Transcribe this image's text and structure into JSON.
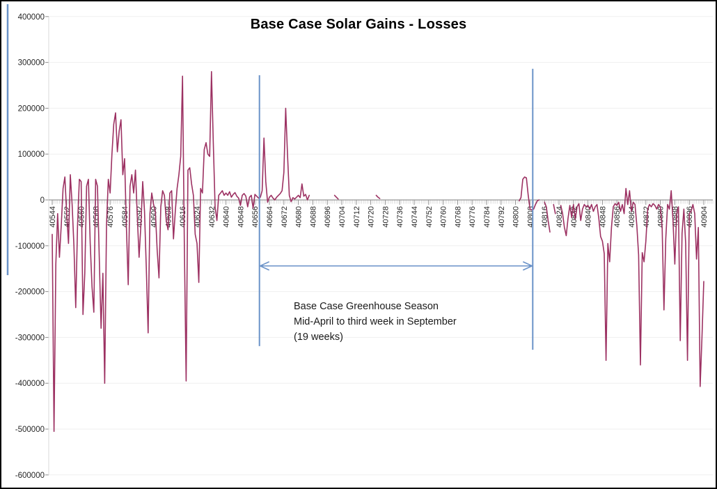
{
  "title": "Base Case Solar Gains - Losses",
  "annotation": {
    "lines": [
      "Base Case Greenhouse Season",
      "Mid-April to third week in September",
      "(19 weeks)"
    ]
  },
  "chart_data": {
    "type": "line",
    "title": "Base Case Solar Gains - Losses",
    "xlabel": "",
    "ylabel": "",
    "legend": "none",
    "grid": "horizontal-light",
    "colors": {
      "series": "#9C3162",
      "marker_blue": "#6A92C8",
      "gridline": "#EFEFEF",
      "axis": "#7F7F7F",
      "tick": "#8E8E8E",
      "minor_tick": "#C9C9C9",
      "label": "#262626",
      "title": "#000000"
    },
    "x_axis": {
      "range": [
        40544,
        40909
      ],
      "tick_interval": 8,
      "minor_tick_interval": 1,
      "labels": [
        40544,
        40552,
        40560,
        40568,
        40576,
        40584,
        40592,
        40600,
        40608,
        40616,
        40624,
        40632,
        40640,
        40648,
        40656,
        40664,
        40672,
        40680,
        40688,
        40696,
        40704,
        40712,
        40720,
        40728,
        40736,
        40744,
        40752,
        40760,
        40768,
        40776,
        40784,
        40792,
        40800,
        40808,
        40816,
        40824,
        40832,
        40840,
        40848,
        40856,
        40864,
        40872,
        40880,
        40888,
        40896,
        40904
      ]
    },
    "y_axis": {
      "min": -600000,
      "max": 400000,
      "tick_step": 100000,
      "tick_labels": [
        "400000",
        "300000",
        "200000",
        "100000",
        "0",
        "-100000",
        "-200000",
        "-300000",
        "-400000",
        "-500000",
        "-600000"
      ]
    },
    "series": [
      {
        "name": "Solar Gains - Losses",
        "color": "#9C3162",
        "segments": [
          {
            "start_x": 40544,
            "values": [
              -75000,
              -505000,
              -140000,
              -30000,
              -125000,
              -55000,
              25000,
              50000,
              -30000,
              -95000,
              55000,
              -10000,
              -100000,
              -235000,
              -55000,
              45000,
              40000,
              -250000,
              -160000,
              30000,
              45000,
              -95000,
              -190000,
              -245000,
              45000,
              30000,
              -125000,
              -280000,
              -160000,
              -400000,
              -55000,
              45000,
              15000,
              100000,
              165000,
              190000,
              105000,
              150000,
              175000,
              55000,
              90000,
              -60000,
              -185000,
              30000,
              55000,
              15000,
              65000,
              -35000,
              -125000,
              -55000,
              40000,
              -25000,
              -150000,
              -290000,
              -30000,
              15000,
              -10000,
              -25000,
              -110000,
              -170000,
              -15000,
              20000,
              10000,
              -45000,
              -65000,
              15000,
              20000,
              -85000,
              -25000,
              25000,
              55000,
              95000,
              270000,
              -95000,
              -395000,
              65000,
              70000,
              35000,
              10000,
              -75000,
              -95000,
              -180000,
              25000,
              15000,
              110000,
              125000,
              100000,
              95000,
              280000,
              125000,
              -15000,
              -45000,
              10000,
              15000,
              20000,
              10000,
              15000,
              10000,
              18000,
              6000,
              12000,
              16000,
              8000,
              4000,
              -12000,
              10000,
              14000,
              8000,
              -15000,
              6000,
              10000,
              -18000,
              12000,
              8000,
              4000,
              6000,
              20000,
              135000,
              40000,
              -5000,
              6000,
              10000,
              4000,
              0,
              6000,
              10000,
              14000,
              20000,
              60000,
              200000,
              100000,
              10000,
              -4000,
              5000,
              2000,
              6000,
              10000,
              5000,
              35000,
              8000,
              12000,
              0,
              10000
            ]
          },
          {
            "start_x": 40700,
            "values": [
              10000,
              6000,
              2000
            ]
          },
          {
            "start_x": 40723,
            "values": [
              10000,
              6000,
              3000
            ]
          },
          {
            "start_x": 40802,
            "values": [
              -2000,
              5000,
              45000,
              50000,
              48000,
              10000,
              -20000,
              -22000,
              -20000,
              -10000,
              -2000,
              0
            ]
          },
          {
            "start_x": 40816,
            "values": [
              -5000,
              -15000,
              -45000,
              -70000
            ]
          },
          {
            "start_x": 40821,
            "values": [
              -10000,
              -30000
            ]
          },
          {
            "start_x": 40825,
            "values": [
              -12000,
              -30000,
              -60000,
              -78000,
              -40000,
              -12000,
              -38000,
              -10000,
              -42000,
              -15000,
              -8000,
              -45000,
              -20000,
              -10000,
              -15000,
              -12000,
              -20000,
              -10000,
              -25000,
              -15000,
              -10000,
              -40000,
              -80000,
              -90000,
              -117000,
              -350000,
              -95000,
              -135000,
              -60000,
              -15000,
              -8000,
              -12000,
              -5000,
              -25000,
              -10000,
              -30000,
              25000,
              -10000,
              20000,
              -25000,
              -5000,
              -10000,
              -55000,
              -120000,
              -360000,
              -115000,
              -135000,
              -90000,
              -20000,
              -10000,
              -15000,
              -8000,
              -12000,
              -20000,
              -10000,
              -15000,
              -60000,
              -240000,
              -85000,
              -10000,
              -20000,
              20000,
              -45000,
              -140000,
              -30000,
              -15000,
              -307000,
              -73000,
              -20000,
              -95000,
              -350000,
              -30000,
              -25000,
              -10000,
              -30000,
              -129000,
              -60000,
              -407000,
              -300000,
              -178000
            ]
          }
        ]
      }
    ],
    "season_markers": {
      "line_color": "#6A92C8",
      "start_line": {
        "x": 40658.5,
        "top_value": 272000,
        "bottom_value": -319000
      },
      "end_line": {
        "x": 40809.5,
        "top_value": 286000,
        "bottom_value": -327000
      },
      "arrow_value": -144000
    },
    "left_edge_marker": {
      "color": "#6A92C8"
    }
  }
}
